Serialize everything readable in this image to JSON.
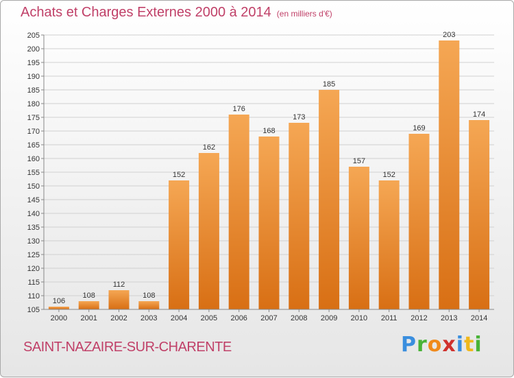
{
  "title": "Achats et Charges Externes 2000 à 2014",
  "subtitle": "(en milliers d'€)",
  "commune": "SAINT-NAZAIRE-SUR-CHARENTE",
  "logo": {
    "text": "Proxiti",
    "colors": [
      "#3a8ede",
      "#49b337",
      "#f08a1c",
      "#d0312d",
      "#3a8ede",
      "#f0b81c",
      "#49b337"
    ]
  },
  "colors": {
    "bar_light": "#f5a754",
    "bar_dark": "#d86f14",
    "title": "#c04068",
    "grid": "#d0d0d0"
  },
  "chart_data": {
    "type": "bar",
    "title": "Achats et Charges Externes 2000 à 2014",
    "xlabel": "",
    "ylabel": "",
    "categories": [
      "2000",
      "2001",
      "2002",
      "2003",
      "2004",
      "2005",
      "2006",
      "2007",
      "2008",
      "2009",
      "2010",
      "2011",
      "2012",
      "2013",
      "2014"
    ],
    "values": [
      106,
      108,
      112,
      108,
      152,
      162,
      176,
      168,
      173,
      185,
      157,
      152,
      169,
      203,
      174
    ],
    "ylim": [
      105,
      205
    ],
    "yticks": [
      105,
      110,
      115,
      120,
      125,
      130,
      135,
      140,
      145,
      150,
      155,
      160,
      165,
      170,
      175,
      180,
      185,
      190,
      195,
      200,
      205
    ],
    "grid": true,
    "data_labels": true
  }
}
